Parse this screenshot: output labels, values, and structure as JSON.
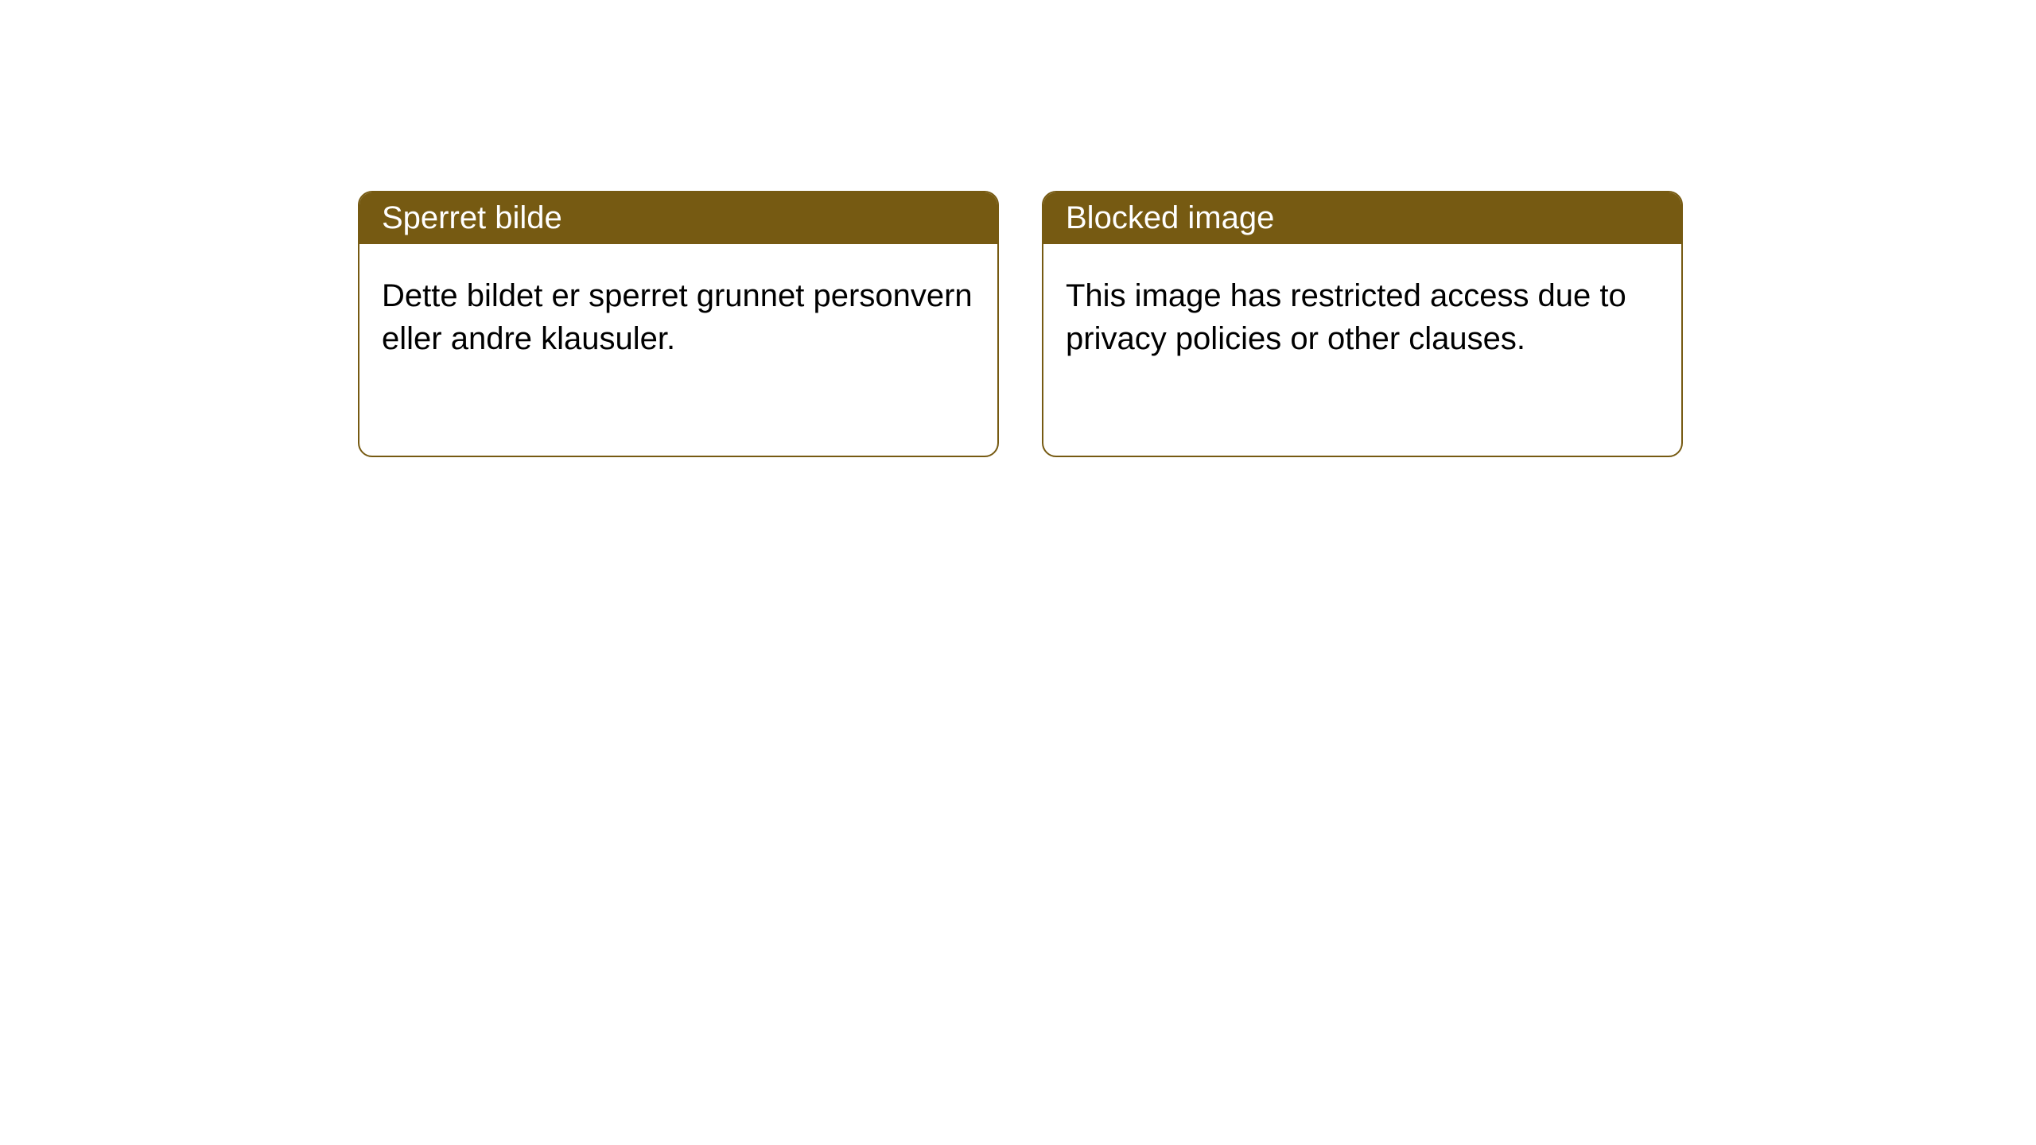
{
  "styling": {
    "header_bg_color": "#765a12",
    "header_text_color": "#ffffff",
    "border_color": "#765a12",
    "body_text_color": "#000000",
    "background_color": "#ffffff",
    "card_border_radius": 18,
    "header_fontsize": 40,
    "body_fontsize": 40
  },
  "cards": {
    "left": {
      "title": "Sperret bilde",
      "body": "Dette bildet er sperret grunnet personvern eller andre klausuler."
    },
    "right": {
      "title": "Blocked image",
      "body": "This image has restricted access due to privacy policies or other clauses."
    }
  }
}
